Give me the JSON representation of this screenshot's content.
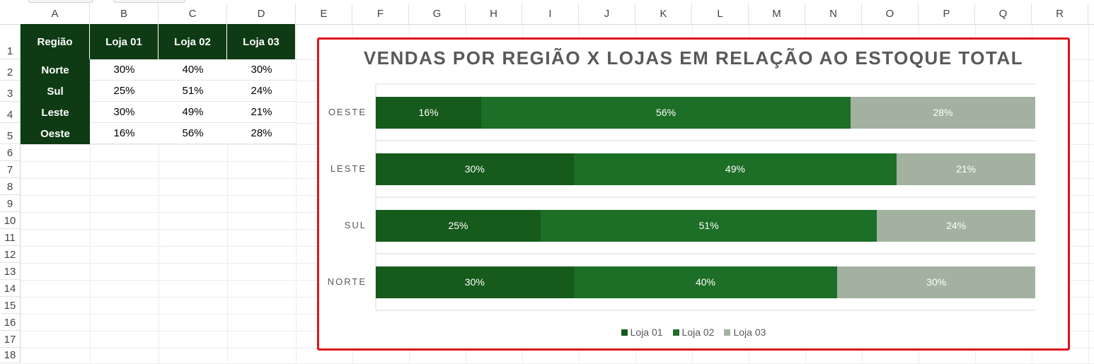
{
  "columns": [
    "A",
    "B",
    "C",
    "D",
    "E",
    "F",
    "G",
    "H",
    "I",
    "J",
    "K",
    "L",
    "M",
    "N",
    "O",
    "P",
    "Q",
    "R"
  ],
  "rows": [
    "1",
    "2",
    "3",
    "4",
    "5",
    "6",
    "7",
    "8",
    "9",
    "10",
    "11",
    "12",
    "13",
    "14",
    "15",
    "16",
    "17",
    "18"
  ],
  "table": {
    "header": [
      "Região",
      "Loja 01",
      "Loja 02",
      "Loja 03"
    ],
    "rows": [
      {
        "label": "Norte",
        "values": [
          "30%",
          "40%",
          "30%"
        ]
      },
      {
        "label": "Sul",
        "values": [
          "25%",
          "51%",
          "24%"
        ]
      },
      {
        "label": "Leste",
        "values": [
          "30%",
          "49%",
          "21%"
        ]
      },
      {
        "label": "Oeste",
        "values": [
          "16%",
          "56%",
          "28%"
        ]
      }
    ]
  },
  "chart_data": {
    "type": "bar",
    "orientation": "horizontal",
    "stacked": true,
    "title": "VENDAS POR REGIÃO X LOJAS EM RELAÇÃO AO ESTOQUE TOTAL",
    "categories": [
      "OESTE",
      "LESTE",
      "SUL",
      "NORTE"
    ],
    "series": [
      {
        "name": "Loja 01",
        "color": "#165a1c",
        "values": [
          16,
          30,
          25,
          30
        ],
        "labels": [
          "16%",
          "30%",
          "25%",
          "30%"
        ]
      },
      {
        "name": "Loja 02",
        "color": "#1d6e27",
        "values": [
          56,
          49,
          51,
          40
        ],
        "labels": [
          "56%",
          "49%",
          "51%",
          "40%"
        ]
      },
      {
        "name": "Loja 03",
        "color": "#a3b1a1",
        "values": [
          28,
          21,
          24,
          30
        ],
        "labels": [
          "28%",
          "21%",
          "24%",
          "30%"
        ]
      }
    ],
    "xlim": [
      0,
      100
    ],
    "legend": "bottom",
    "grid": true
  }
}
